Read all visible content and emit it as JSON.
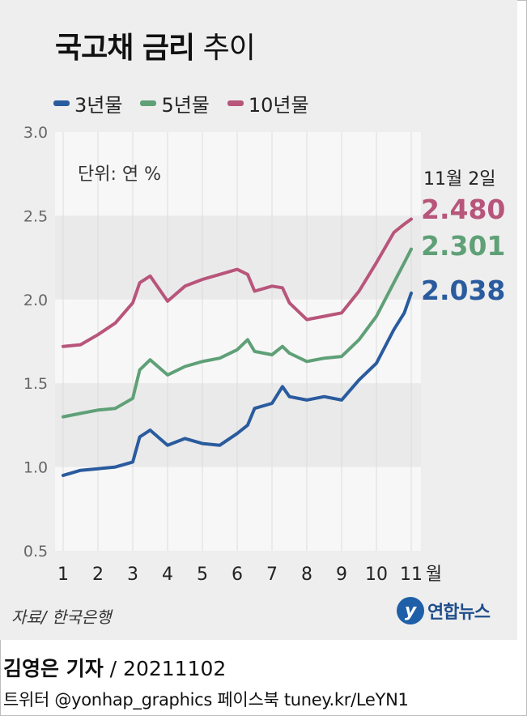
{
  "title": {
    "bold": "국고채 금리",
    "normal": "추이"
  },
  "legend": [
    {
      "label": "3년물",
      "color": "#2a5b9e"
    },
    {
      "label": "5년물",
      "color": "#5fa077"
    },
    {
      "label": "10년물",
      "color": "#b8557a"
    }
  ],
  "chart_data": {
    "type": "line",
    "unit_label": "단위: 연 %",
    "date_label": "11월 2일",
    "ylim": [
      0.5,
      3.0
    ],
    "yticks": [
      "3.0",
      "2.5",
      "2.0",
      "1.5",
      "1.0",
      "0.5"
    ],
    "xticks": [
      "1",
      "2",
      "3",
      "4",
      "5",
      "6",
      "7",
      "8",
      "9",
      "10",
      "11"
    ],
    "x_unit": "월",
    "x": [
      1.0,
      1.5,
      2.0,
      2.5,
      3.0,
      3.2,
      3.5,
      4.0,
      4.5,
      5.0,
      5.5,
      6.0,
      6.3,
      6.5,
      7.0,
      7.3,
      7.5,
      8.0,
      8.5,
      9.0,
      9.5,
      10.0,
      10.5,
      10.8,
      11.0
    ],
    "series": [
      {
        "name": "3년물",
        "color": "#2a5b9e",
        "last_label": "2.038",
        "values": [
          0.95,
          0.98,
          0.99,
          1.0,
          1.03,
          1.18,
          1.22,
          1.13,
          1.17,
          1.14,
          1.13,
          1.2,
          1.25,
          1.35,
          1.38,
          1.48,
          1.42,
          1.4,
          1.42,
          1.4,
          1.52,
          1.62,
          1.82,
          1.92,
          2.038
        ]
      },
      {
        "name": "5년물",
        "color": "#5fa077",
        "last_label": "2.301",
        "values": [
          1.3,
          1.32,
          1.34,
          1.35,
          1.41,
          1.58,
          1.64,
          1.55,
          1.6,
          1.63,
          1.65,
          1.7,
          1.76,
          1.69,
          1.67,
          1.72,
          1.68,
          1.63,
          1.65,
          1.66,
          1.76,
          1.9,
          2.1,
          2.22,
          2.301
        ]
      },
      {
        "name": "10년물",
        "color": "#b8557a",
        "last_label": "2.480",
        "values": [
          1.72,
          1.73,
          1.79,
          1.86,
          1.98,
          2.1,
          2.14,
          1.99,
          2.08,
          2.12,
          2.15,
          2.18,
          2.15,
          2.05,
          2.08,
          2.07,
          1.98,
          1.88,
          1.9,
          1.92,
          2.05,
          2.22,
          2.4,
          2.45,
          2.48
        ]
      }
    ]
  },
  "source": "자료/ 한국은행",
  "logo": {
    "mark": "y",
    "text": "연합뉴스"
  },
  "byline": {
    "reporter": "김영은 기자",
    "date": "/ 20211102"
  },
  "social": "트위터 @yonhap_graphics  페이스북 tuney.kr/LeYN1"
}
